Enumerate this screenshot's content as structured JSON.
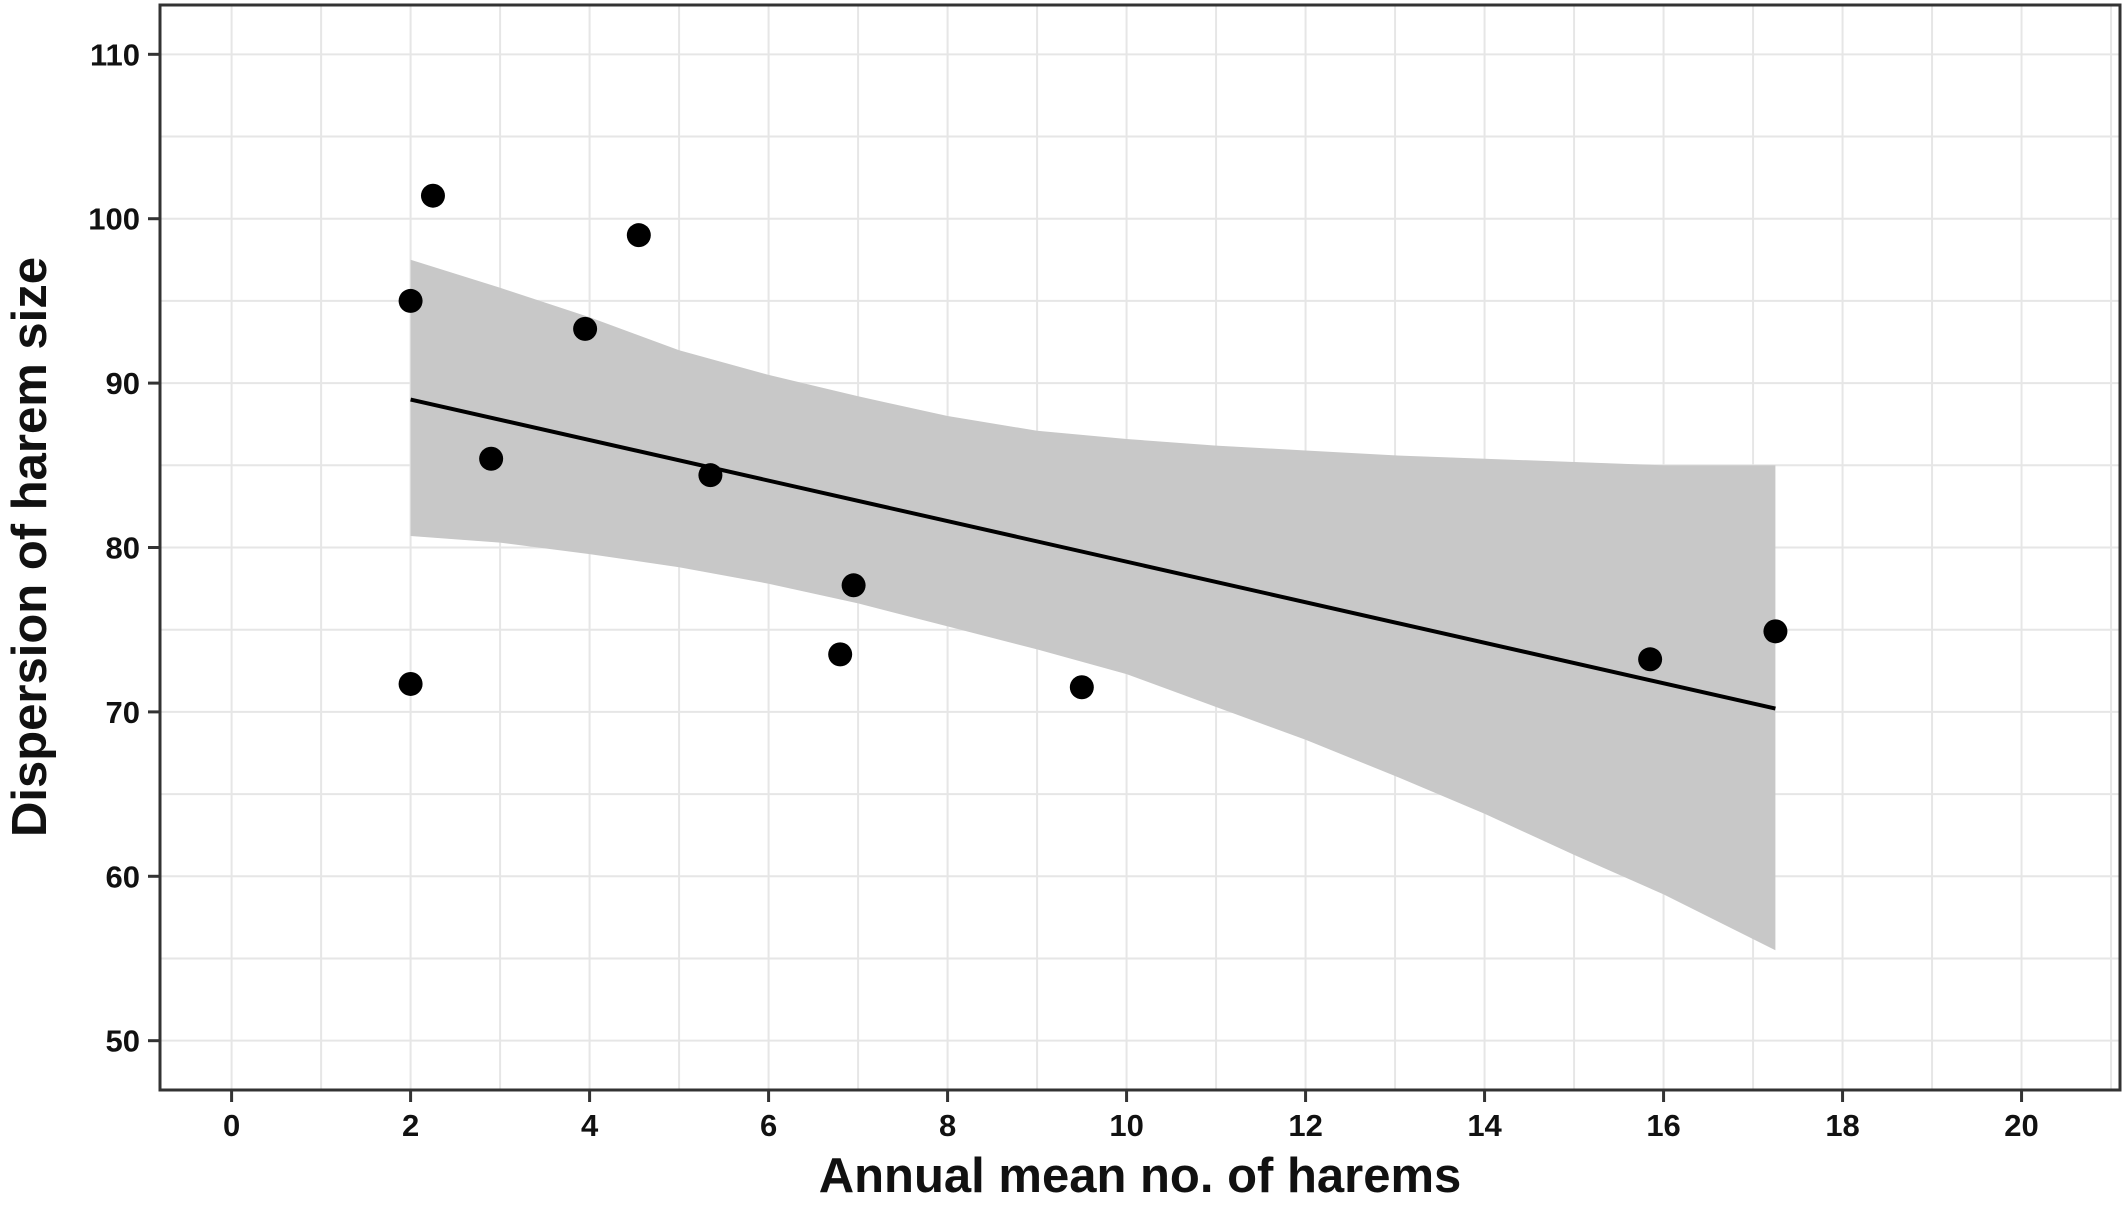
{
  "chart_data": {
    "type": "scatter",
    "title": "",
    "xlabel": "Annual mean no. of harems",
    "ylabel": "Dispersion of harem size",
    "xlim": [
      -0.8,
      21.1
    ],
    "ylim": [
      47.0,
      113.0
    ],
    "x_ticks": [
      0,
      2,
      4,
      6,
      8,
      10,
      12,
      14,
      16,
      18,
      20
    ],
    "y_ticks": [
      50,
      60,
      70,
      80,
      90,
      100,
      110
    ],
    "x_tick_labels": [
      "0",
      "2",
      "4",
      "6",
      "8",
      "10",
      "12",
      "14",
      "16",
      "18",
      "20"
    ],
    "y_tick_labels": [
      "50",
      "60",
      "70",
      "80",
      "90",
      "100",
      "110"
    ],
    "grid": true,
    "legend": "none",
    "points": [
      {
        "x": 2.0,
        "y": 95.0
      },
      {
        "x": 2.0,
        "y": 71.7
      },
      {
        "x": 2.25,
        "y": 101.4
      },
      {
        "x": 2.9,
        "y": 85.4
      },
      {
        "x": 3.95,
        "y": 93.3
      },
      {
        "x": 4.55,
        "y": 99.0
      },
      {
        "x": 5.35,
        "y": 84.4
      },
      {
        "x": 6.8,
        "y": 73.5
      },
      {
        "x": 6.95,
        "y": 77.7
      },
      {
        "x": 9.5,
        "y": 71.5
      },
      {
        "x": 15.85,
        "y": 73.2
      },
      {
        "x": 17.25,
        "y": 74.9
      }
    ],
    "trend_line": {
      "x": [
        2.0,
        17.25
      ],
      "y": [
        89.0,
        70.2
      ]
    },
    "confidence_band": {
      "x": [
        2.0,
        3.0,
        4.0,
        5.0,
        6.0,
        7.0,
        8.0,
        9.0,
        10.0,
        11.0,
        12.0,
        13.0,
        14.0,
        15.0,
        16.0,
        17.25
      ],
      "upper": [
        97.5,
        95.8,
        94.0,
        92.0,
        90.5,
        89.2,
        88.0,
        87.1,
        86.6,
        86.2,
        85.9,
        85.6,
        85.4,
        85.2,
        85.0,
        85.0
      ],
      "lower": [
        80.7,
        80.3,
        79.6,
        78.8,
        77.8,
        76.6,
        75.2,
        73.8,
        72.3,
        70.3,
        68.3,
        66.1,
        63.8,
        61.3,
        58.9,
        55.5
      ]
    },
    "colors": {
      "points": "#000000",
      "trend_line": "#000000",
      "confidence_band": "#c8c8c8",
      "grid": "#e6e6e6",
      "panel_border": "#333333"
    }
  }
}
